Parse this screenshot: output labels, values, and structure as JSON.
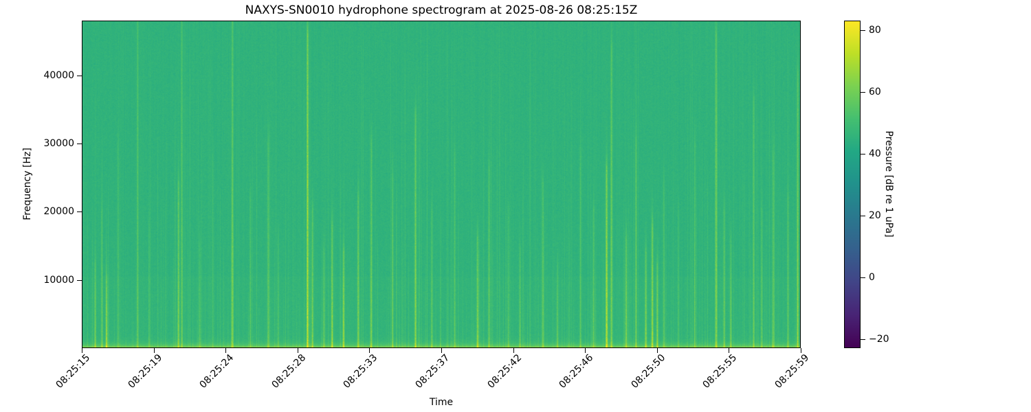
{
  "chart_data": {
    "type": "heatmap",
    "subtype": "spectrogram",
    "title": "NAXYS-SN0010 hydrophone spectrogram at 2025-08-26 08:25:15Z",
    "xlabel": "Time",
    "ylabel": "Frequency [Hz]",
    "colormap": "viridis",
    "grid": false,
    "x_tick_labels": [
      "08:25:15",
      "08:25:19",
      "08:25:24",
      "08:25:28",
      "08:25:33",
      "08:25:37",
      "08:25:42",
      "08:25:46",
      "08:25:50",
      "08:25:55",
      "08:25:59"
    ],
    "time_start_label": "08:25:15",
    "time_span_s": 44,
    "y_ticks": [
      {
        "value": 10000,
        "label": "10000"
      },
      {
        "value": 20000,
        "label": "20000"
      },
      {
        "value": 30000,
        "label": "30000"
      },
      {
        "value": 40000,
        "label": "40000"
      }
    ],
    "freq_range_hz": [
      0,
      48000
    ],
    "colorbar": {
      "label": "Pressure [dB re 1 uPa]",
      "ticks": [
        {
          "value": 80,
          "label": "80"
        },
        {
          "value": 60,
          "label": "60"
        },
        {
          "value": 40,
          "label": "40"
        },
        {
          "value": 20,
          "label": "20"
        },
        {
          "value": 0,
          "label": "0"
        },
        {
          "value": -20,
          "label": "−20"
        }
      ],
      "vmin": -23,
      "vmax": 83
    },
    "viridis_stops": [
      [
        0.0,
        "#440154"
      ],
      [
        0.1,
        "#482475"
      ],
      [
        0.2,
        "#414487"
      ],
      [
        0.3,
        "#35608d"
      ],
      [
        0.4,
        "#2a788e"
      ],
      [
        0.5,
        "#21918c"
      ],
      [
        0.6,
        "#22a884"
      ],
      [
        0.7,
        "#44bf70"
      ],
      [
        0.8,
        "#7ad151"
      ],
      [
        0.9,
        "#bddf26"
      ],
      [
        1.0,
        "#fde725"
      ]
    ],
    "background_level_db": 45.3,
    "pixel_noise_db": 2.5,
    "low_freq_band": {
      "boost_db": 21,
      "decay_hz": 420
    },
    "below_10khz_boost_db": 0.7,
    "faint_streak_probability": 0.25,
    "transients": [
      [
        0.8,
        14,
        12000
      ],
      [
        1.2,
        10,
        20000
      ],
      [
        1.5,
        22,
        10000
      ],
      [
        2.2,
        8,
        30000
      ],
      [
        3.4,
        12,
        48000
      ],
      [
        4.1,
        7,
        18000
      ],
      [
        5.9,
        18,
        24000
      ],
      [
        6.1,
        12,
        48000
      ],
      [
        7.2,
        10,
        15000
      ],
      [
        8.0,
        6,
        28000
      ],
      [
        9.2,
        16,
        48000
      ],
      [
        10.3,
        10,
        22000
      ],
      [
        11.4,
        12,
        30000
      ],
      [
        12.0,
        9,
        16000
      ],
      [
        13.8,
        30,
        46000
      ],
      [
        14.1,
        18,
        20000
      ],
      [
        14.8,
        12,
        14000
      ],
      [
        15.3,
        20,
        18000
      ],
      [
        16.0,
        22,
        14000
      ],
      [
        16.9,
        18,
        22000
      ],
      [
        17.7,
        16,
        30000
      ],
      [
        19.0,
        10,
        25000
      ],
      [
        20.4,
        20,
        34000
      ],
      [
        21.4,
        12,
        20000
      ],
      [
        22.8,
        10,
        28000
      ],
      [
        24.2,
        20,
        16000
      ],
      [
        24.9,
        12,
        26000
      ],
      [
        26.1,
        9,
        20000
      ],
      [
        26.8,
        12,
        14000
      ],
      [
        28.2,
        14,
        24000
      ],
      [
        29.1,
        10,
        12000
      ],
      [
        30.5,
        9,
        28000
      ],
      [
        31.3,
        12,
        20000
      ],
      [
        32.1,
        28,
        26000
      ],
      [
        32.4,
        16,
        44000
      ],
      [
        33.3,
        18,
        16000
      ],
      [
        33.9,
        12,
        30000
      ],
      [
        34.5,
        20,
        14000
      ],
      [
        34.9,
        24,
        18000
      ],
      [
        35.2,
        18,
        12000
      ],
      [
        35.6,
        10,
        24000
      ],
      [
        36.5,
        8,
        20000
      ],
      [
        37.5,
        10,
        30000
      ],
      [
        38.8,
        20,
        46000
      ],
      [
        39.3,
        14,
        20000
      ],
      [
        39.7,
        12,
        16000
      ],
      [
        41.1,
        14,
        36000
      ],
      [
        41.6,
        10,
        20000
      ],
      [
        42.3,
        12,
        28000
      ],
      [
        43.2,
        10,
        22000
      ],
      [
        43.8,
        18,
        40000
      ]
    ]
  }
}
